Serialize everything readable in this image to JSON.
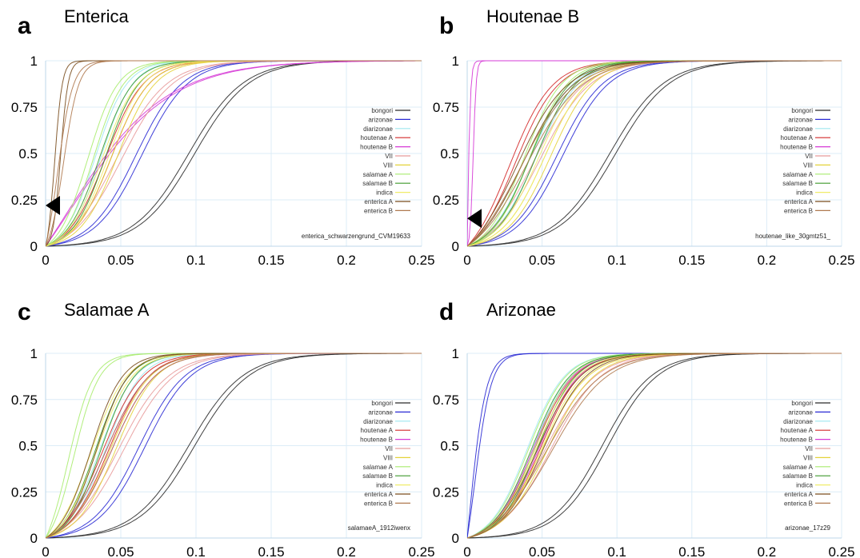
{
  "figure": {
    "x_ticks": [
      "0",
      "0.05",
      "0.1",
      "0.15",
      "0.2",
      "0.25"
    ],
    "y_ticks": [
      "0",
      "0.25",
      "0.5",
      "0.75",
      "1"
    ]
  },
  "colors": {
    "bongori": "#2b2b2b",
    "arizonae": "#2a2ad4",
    "diarizonae": "#9fe7ef",
    "houtenae A": "#d42a2a",
    "houtenae B": "#d63ad6",
    "VII": "#e89a9a",
    "VIII": "#e4d23a",
    "salamae A": "#a8ec6e",
    "salamae B": "#3f9a2c",
    "indica": "#f0ec6a",
    "enterica A": "#7a4e1e",
    "enterica B": "#b07a50"
  },
  "chart_data": [
    {
      "type": "line",
      "letter": "a",
      "title": "Enterica",
      "annotation": "enterica_schwarzengrund_CVM19633",
      "xlim": [
        0,
        0.25
      ],
      "ylim": [
        0,
        1
      ],
      "x_ticks": [
        0,
        0.05,
        0.1,
        0.15,
        0.2,
        0.25
      ],
      "y_ticks": [
        0,
        0.25,
        0.5,
        0.75,
        1
      ],
      "grid": true,
      "legend_position": "right",
      "marker": {
        "x": 0,
        "y": 0.22,
        "shape": "triangle"
      },
      "series": [
        {
          "name": "bongori",
          "midpoint": 0.095,
          "steepness": 55
        },
        {
          "name": "arizonae",
          "midpoint": 0.06,
          "steepness": 65
        },
        {
          "name": "diarizonae",
          "midpoint": 0.033,
          "steepness": 95
        },
        {
          "name": "houtenae A",
          "midpoint": 0.04,
          "steepness": 80
        },
        {
          "name": "houtenae B",
          "midpoint": 0.012,
          "steepness": 30
        },
        {
          "name": "VII",
          "midpoint": 0.047,
          "steepness": 60
        },
        {
          "name": "VIII",
          "midpoint": 0.044,
          "steepness": 80
        },
        {
          "name": "salamae A",
          "midpoint": 0.028,
          "steepness": 100
        },
        {
          "name": "salamae B",
          "midpoint": 0.036,
          "steepness": 90
        },
        {
          "name": "indica",
          "midpoint": 0.038,
          "steepness": 85
        },
        {
          "name": "enterica A",
          "midpoint": 0.006,
          "steepness": 400
        },
        {
          "name": "enterica B",
          "midpoint": 0.008,
          "steepness": 200
        }
      ]
    },
    {
      "type": "line",
      "letter": "b",
      "title": "Houtenae B",
      "annotation": "houtenae_like_30gmtz51_",
      "xlim": [
        0,
        0.25
      ],
      "ylim": [
        0,
        1
      ],
      "x_ticks": [
        0,
        0.05,
        0.1,
        0.15,
        0.2,
        0.25
      ],
      "y_ticks": [
        0,
        0.25,
        0.5,
        0.75,
        1
      ],
      "grid": true,
      "legend_position": "right",
      "marker": {
        "x": 0,
        "y": 0.15,
        "shape": "triangle"
      },
      "series": [
        {
          "name": "bongori",
          "midpoint": 0.095,
          "steepness": 55
        },
        {
          "name": "arizonae",
          "midpoint": 0.06,
          "steepness": 65
        },
        {
          "name": "diarizonae",
          "midpoint": 0.042,
          "steepness": 70
        },
        {
          "name": "houtenae A",
          "midpoint": 0.028,
          "steepness": 70
        },
        {
          "name": "houtenae B",
          "midpoint": 0.0,
          "steepness": 1000
        },
        {
          "name": "VII",
          "midpoint": 0.045,
          "steepness": 60
        },
        {
          "name": "VIII",
          "midpoint": 0.052,
          "steepness": 70
        },
        {
          "name": "salamae A",
          "midpoint": 0.038,
          "steepness": 80
        },
        {
          "name": "salamae B",
          "midpoint": 0.042,
          "steepness": 75
        },
        {
          "name": "indica",
          "midpoint": 0.048,
          "steepness": 70
        },
        {
          "name": "enterica A",
          "midpoint": 0.033,
          "steepness": 60
        },
        {
          "name": "enterica B",
          "midpoint": 0.036,
          "steepness": 55
        }
      ]
    },
    {
      "type": "line",
      "letter": "c",
      "title": "Salamae A",
      "annotation": "salamaeA_1912iwenx",
      "xlim": [
        0,
        0.25
      ],
      "ylim": [
        0,
        1
      ],
      "x_ticks": [
        0,
        0.05,
        0.1,
        0.15,
        0.2,
        0.25
      ],
      "y_ticks": [
        0,
        0.25,
        0.5,
        0.75,
        1
      ],
      "grid": true,
      "legend_position": "right",
      "series": [
        {
          "name": "bongori",
          "midpoint": 0.095,
          "steepness": 55
        },
        {
          "name": "arizonae",
          "midpoint": 0.062,
          "steepness": 65
        },
        {
          "name": "diarizonae",
          "midpoint": 0.036,
          "steepness": 85
        },
        {
          "name": "houtenae A",
          "midpoint": 0.038,
          "steepness": 75
        },
        {
          "name": "houtenae B",
          "midpoint": 0.04,
          "steepness": 70
        },
        {
          "name": "VII",
          "midpoint": 0.048,
          "steepness": 60
        },
        {
          "name": "VIII",
          "midpoint": 0.043,
          "steepness": 75
        },
        {
          "name": "salamae A",
          "midpoint": 0.015,
          "steepness": 120
        },
        {
          "name": "salamae B",
          "midpoint": 0.033,
          "steepness": 90
        },
        {
          "name": "indica",
          "midpoint": 0.03,
          "steepness": 85
        },
        {
          "name": "enterica A",
          "midpoint": 0.03,
          "steepness": 95
        },
        {
          "name": "enterica B",
          "midpoint": 0.04,
          "steepness": 70
        }
      ]
    },
    {
      "type": "line",
      "letter": "d",
      "title": "Arizonae",
      "annotation": "arizonae_17z29",
      "xlim": [
        0,
        0.25
      ],
      "ylim": [
        0,
        1
      ],
      "x_ticks": [
        0,
        0.05,
        0.1,
        0.15,
        0.2,
        0.25
      ],
      "y_ticks": [
        0,
        0.25,
        0.5,
        0.75,
        1
      ],
      "grid": true,
      "legend_position": "right",
      "series": [
        {
          "name": "bongori",
          "midpoint": 0.09,
          "steepness": 60
        },
        {
          "name": "arizonae",
          "midpoint": 0.001,
          "steepness": 180
        },
        {
          "name": "diarizonae",
          "midpoint": 0.04,
          "steepness": 80
        },
        {
          "name": "houtenae A",
          "midpoint": 0.045,
          "steepness": 75
        },
        {
          "name": "houtenae B",
          "midpoint": 0.044,
          "steepness": 75
        },
        {
          "name": "VII",
          "midpoint": 0.052,
          "steepness": 60
        },
        {
          "name": "VIII",
          "midpoint": 0.05,
          "steepness": 65
        },
        {
          "name": "salamae A",
          "midpoint": 0.041,
          "steepness": 80
        },
        {
          "name": "salamae B",
          "midpoint": 0.043,
          "steepness": 78
        },
        {
          "name": "indica",
          "midpoint": 0.046,
          "steepness": 72
        },
        {
          "name": "enterica A",
          "midpoint": 0.047,
          "steepness": 70
        },
        {
          "name": "enterica B",
          "midpoint": 0.053,
          "steepness": 55
        }
      ]
    }
  ]
}
